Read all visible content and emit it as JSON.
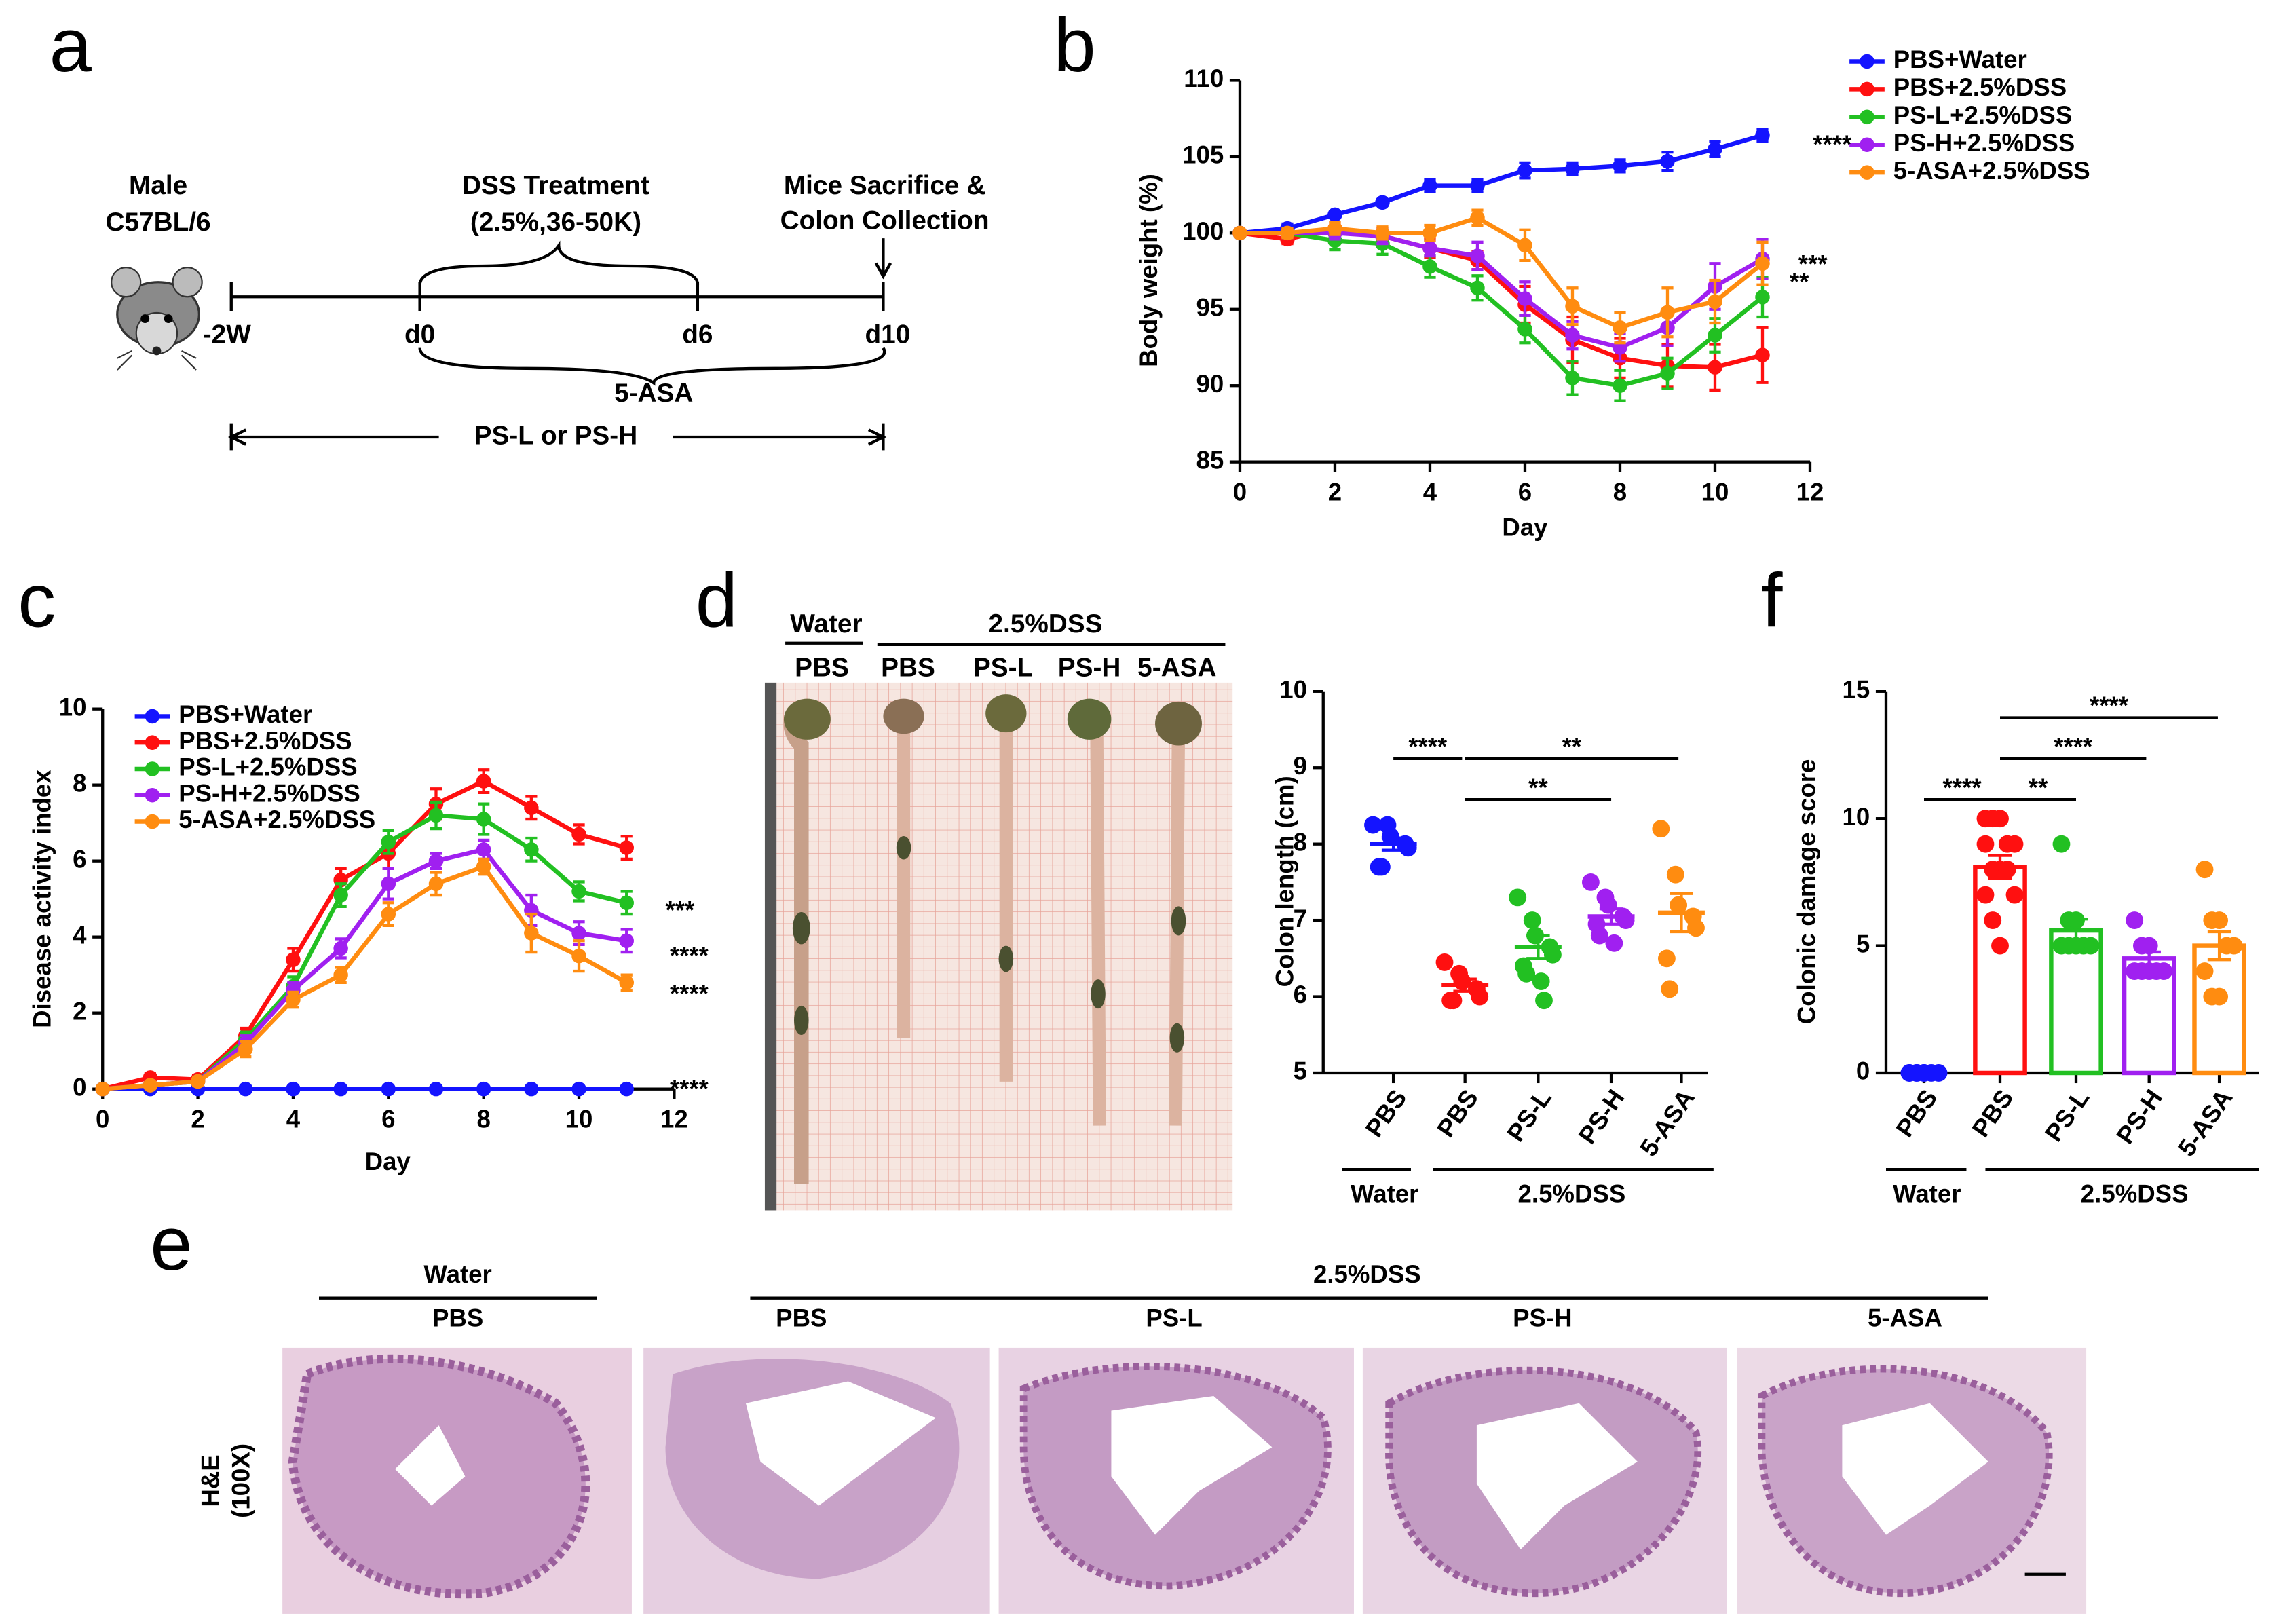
{
  "panel_labels": [
    "a",
    "b",
    "c",
    "d",
    "e",
    "f"
  ],
  "diagram": {
    "labels": [
      "Male",
      "C57BL/6",
      "DSS Treatment",
      "(2.5%,36-50K)",
      "Mice Sacrifice &",
      "Colon Collection",
      "-2W",
      "d0",
      "d6",
      "d10",
      "5-ASA",
      "PS-L or PS-H"
    ]
  },
  "chart_data": [
    {
      "type": "line",
      "xlabel": "Day",
      "ylabel": "Body weight (%)",
      "x": [
        0,
        1,
        2,
        3,
        4,
        5,
        6,
        7,
        8,
        9,
        10,
        11
      ],
      "xlim": [
        0,
        12
      ],
      "xticks": [
        0,
        2,
        4,
        6,
        8,
        10,
        12
      ],
      "ylim": [
        85,
        110
      ],
      "yticks": [
        85,
        90,
        95,
        100,
        105,
        110
      ],
      "series": [
        {
          "name": "PBS+Water",
          "color": "#1414ff",
          "values": [
            100,
            100.3,
            101.2,
            102,
            103.1,
            103.1,
            104.1,
            104.2,
            104.4,
            104.7,
            105.5,
            106.4
          ],
          "errors": [
            0,
            0.3,
            0.2,
            0.2,
            0.4,
            0.4,
            0.5,
            0.4,
            0.4,
            0.6,
            0.5,
            0.4
          ]
        },
        {
          "name": "PBS+2.5%DSS",
          "color": "#ff1010",
          "values": [
            100,
            99.6,
            100.3,
            99.8,
            99,
            98.2,
            95.3,
            93,
            91.8,
            91.3,
            91.2,
            92
          ],
          "errors": [
            0,
            0.3,
            0.4,
            0.5,
            0.6,
            0.6,
            1.2,
            1.5,
            1.3,
            1.4,
            1.5,
            1.8
          ]
        },
        {
          "name": "PS-L+2.5%DSS",
          "color": "#22c022",
          "values": [
            100,
            100,
            99.5,
            99.3,
            97.8,
            96.4,
            93.7,
            90.5,
            90,
            90.8,
            93.3,
            95.8
          ],
          "errors": [
            0,
            0.3,
            0.6,
            0.7,
            0.7,
            0.8,
            0.9,
            1.1,
            1,
            1,
            1.1,
            1.3
          ]
        },
        {
          "name": "PS-H+2.5%DSS",
          "color": "#a020f0",
          "values": [
            100,
            100,
            100,
            99.8,
            99,
            98.5,
            95.7,
            93.3,
            92.5,
            93.8,
            96.5,
            98.3
          ],
          "errors": [
            0,
            0.3,
            0.4,
            0.5,
            0.5,
            0.9,
            1.1,
            0.9,
            0.9,
            1.2,
            1.5,
            1.3
          ]
        },
        {
          "name": "5-ASA+2.5%DSS",
          "color": "#ff8c10",
          "values": [
            100,
            100,
            100.3,
            100,
            100,
            101,
            99.2,
            95.2,
            93.8,
            94.8,
            95.5,
            98
          ],
          "errors": [
            0,
            0.3,
            0.4,
            0.4,
            0.5,
            0.5,
            1,
            1.2,
            1,
            1.6,
            1.4,
            1.4
          ]
        }
      ],
      "annotations": [
        "****",
        "***",
        "**"
      ]
    },
    {
      "type": "line",
      "xlabel": "Day",
      "ylabel": "Disease activity index",
      "x": [
        0,
        1,
        2,
        3,
        4,
        5,
        6,
        7,
        8,
        9,
        10,
        11
      ],
      "xlim": [
        0,
        12
      ],
      "xticks": [
        0,
        2,
        4,
        6,
        8,
        10,
        12
      ],
      "ylim": [
        0,
        10
      ],
      "yticks": [
        0,
        2,
        4,
        6,
        8,
        10
      ],
      "series": [
        {
          "name": "PBS+Water",
          "color": "#1414ff",
          "values": [
            0,
            0,
            0,
            0,
            0,
            0,
            0,
            0,
            0,
            0,
            0,
            0
          ],
          "errors": [
            0,
            0,
            0,
            0,
            0,
            0,
            0,
            0,
            0,
            0,
            0,
            0
          ]
        },
        {
          "name": "PBS+2.5%DSS",
          "color": "#ff1010",
          "values": [
            0,
            0.3,
            0.25,
            1.4,
            3.4,
            5.5,
            6.2,
            7.5,
            8.1,
            7.4,
            6.7,
            6.35
          ],
          "errors": [
            0,
            0.1,
            0.1,
            0.2,
            0.3,
            0.3,
            0.4,
            0.4,
            0.3,
            0.3,
            0.25,
            0.3
          ]
        },
        {
          "name": "PS-L+2.5%DSS",
          "color": "#22c022",
          "values": [
            0,
            0.1,
            0.2,
            1.3,
            2.7,
            5.1,
            6.5,
            7.2,
            7.1,
            6.3,
            5.2,
            4.9
          ],
          "errors": [
            0,
            0.05,
            0.1,
            0.2,
            0.25,
            0.3,
            0.3,
            0.35,
            0.4,
            0.3,
            0.25,
            0.3
          ]
        },
        {
          "name": "PS-H+2.5%DSS",
          "color": "#a020f0",
          "values": [
            0,
            0.1,
            0.2,
            1.2,
            2.6,
            3.7,
            5.4,
            6,
            6.3,
            4.7,
            4.1,
            3.9
          ],
          "errors": [
            0,
            0.05,
            0.1,
            0.2,
            0.2,
            0.25,
            0.4,
            0.2,
            0.25,
            0.4,
            0.3,
            0.3
          ]
        },
        {
          "name": "5-ASA+2.5%DSS",
          "color": "#ff8c10",
          "values": [
            0,
            0.1,
            0.2,
            1.05,
            2.35,
            3,
            4.6,
            5.4,
            5.85,
            4.1,
            3.5,
            2.8
          ],
          "errors": [
            0,
            0.05,
            0.1,
            0.2,
            0.2,
            0.2,
            0.3,
            0.3,
            0.2,
            0.5,
            0.4,
            0.2
          ]
        }
      ],
      "annotations": [
        "***",
        "****",
        "****",
        "****"
      ]
    },
    {
      "type": "strip",
      "ylabel": "Colon length (cm)",
      "categories": [
        "PBS",
        "PBS",
        "PS-L",
        "PS-H",
        "5-ASA"
      ],
      "colors": [
        "#1414ff",
        "#ff1010",
        "#22c022",
        "#a020f0",
        "#ff8c10"
      ],
      "ylim": [
        5,
        10
      ],
      "yticks": [
        5,
        6,
        7,
        8,
        9,
        10
      ],
      "points": [
        [
          8.25,
          8.25,
          8.1,
          8,
          7.95,
          7.7,
          7.7
        ],
        [
          6.45,
          6.3,
          6.2,
          6.1,
          6,
          5.95,
          5.95
        ],
        [
          7.3,
          7,
          6.8,
          6.65,
          6.55,
          6.4,
          6.3,
          6.2,
          5.95
        ],
        [
          7.5,
          7.3,
          7.2,
          7.05,
          7,
          6.95,
          6.8,
          6.7
        ],
        [
          8.2,
          7.6,
          7.2,
          7.05,
          6.9,
          6.5,
          6.1
        ]
      ],
      "means": [
        8,
        6.15,
        6.65,
        7.05,
        7.1
      ],
      "errors": [
        0.08,
        0.08,
        0.15,
        0.1,
        0.25
      ],
      "groups": [
        "Water",
        "2.5%DSS"
      ],
      "annotations": [
        "****",
        "**",
        "**"
      ]
    },
    {
      "type": "bar",
      "ylabel": "Colonic damage score",
      "categories": [
        "PBS",
        "PBS",
        "PS-L",
        "PS-H",
        "5-ASA"
      ],
      "colors": [
        "#1414ff",
        "#ff1010",
        "#22c022",
        "#a020f0",
        "#ff8c10"
      ],
      "ylim": [
        0,
        15
      ],
      "yticks": [
        0,
        5,
        10,
        15
      ],
      "points": [
        [
          0,
          0,
          0,
          0,
          0,
          0,
          0,
          0
        ],
        [
          10,
          10,
          10,
          9,
          9,
          9,
          8,
          8,
          8,
          7,
          7,
          6,
          5
        ],
        [
          9,
          6,
          6,
          5,
          5,
          5,
          5,
          5
        ],
        [
          6,
          5,
          5,
          4,
          4,
          4,
          4,
          4
        ],
        [
          8,
          6,
          6,
          5,
          5,
          4,
          3,
          3
        ]
      ],
      "means": [
        0,
        8.1,
        5.6,
        4.5,
        5
      ],
      "errors": [
        0,
        0.45,
        0.45,
        0.25,
        0.55
      ],
      "groups": [
        "Water",
        "2.5%DSS"
      ],
      "annotations": [
        "****",
        "**",
        "****",
        "****"
      ]
    }
  ],
  "photo": {
    "groups": [
      "Water",
      "2.5%DSS"
    ],
    "samples": [
      "PBS",
      "PBS",
      "PS-L",
      "PS-H",
      "5-ASA"
    ]
  },
  "histology": {
    "groups": [
      "Water",
      "2.5%DSS"
    ],
    "samples": [
      "PBS",
      "PBS",
      "PS-L",
      "PS-H",
      "5-ASA"
    ],
    "stain": [
      "H&E",
      "(100X)"
    ]
  }
}
